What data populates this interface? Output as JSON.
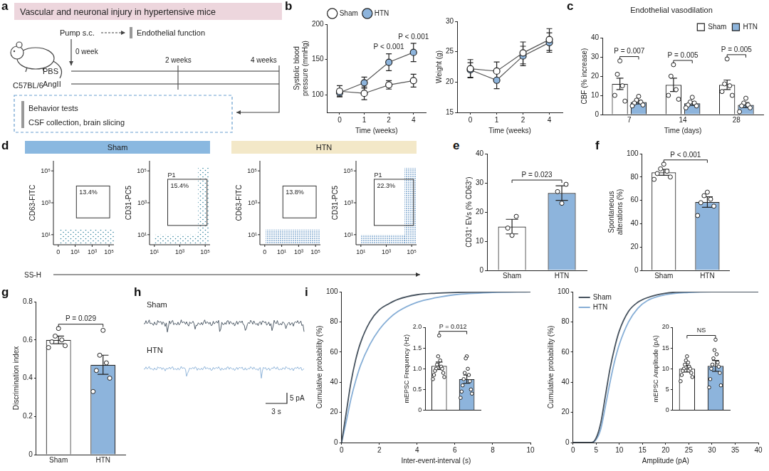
{
  "panel_a": {
    "letter": "a",
    "title": "Vascular and neuronal injury in hypertensive mice",
    "strain": "C57BL/6",
    "pump": "Pump s.c.",
    "start": "0 week",
    "mid": "2 weeks",
    "end": "4 weeks",
    "groups": [
      "PBS",
      "AngII"
    ],
    "early_test": "Endothelial function",
    "end_tests": [
      "Behavior tests",
      "CSF collection, brain slicing"
    ]
  },
  "chart_data": [
    {
      "panel": "b",
      "type": "line",
      "categories": [
        "0",
        "1",
        "2",
        "4"
      ],
      "x_label": "Time (weeks)",
      "y_label": "Systolic blood pressure (mmHg)",
      "ylim": [
        75,
        200
      ],
      "yticks": [
        100,
        150,
        200
      ],
      "grid": false,
      "legend": "top",
      "series": [
        {
          "name": "Sham",
          "color": "#ffffff",
          "marker": "circle",
          "values": [
            105,
            102,
            114,
            120
          ],
          "errors": [
            8,
            9,
            6,
            9
          ]
        },
        {
          "name": "HTN",
          "color": "#8db4dc",
          "marker": "circle",
          "values": [
            103,
            117,
            146,
            160
          ],
          "errors": [
            5,
            8,
            12,
            13
          ]
        }
      ],
      "annotations": [
        {
          "text": "P < 0.001",
          "category": "2"
        },
        {
          "text": "P < 0.001",
          "category": "4"
        }
      ]
    },
    {
      "panel": "b",
      "type": "line",
      "categories": [
        "0",
        "1",
        "2",
        "4"
      ],
      "x_label": "Time (weeks)",
      "y_label": "Weight (g)",
      "ylim": [
        15,
        30
      ],
      "yticks": [
        15,
        20,
        25,
        30
      ],
      "grid": false,
      "series": [
        {
          "name": "Sham",
          "color": "#ffffff",
          "marker": "circle",
          "values": [
            22.2,
            21.8,
            24.8,
            27.0
          ],
          "errors": [
            1.5,
            1.5,
            1.8,
            1.8
          ]
        },
        {
          "name": "HTN",
          "color": "#8db4dc",
          "marker": "circle",
          "values": [
            22.0,
            20.3,
            24.3,
            26.5
          ],
          "errors": [
            1.2,
            1.4,
            1.6,
            1.6
          ]
        }
      ]
    },
    {
      "panel": "c",
      "type": "bar",
      "title": "Endothelial vasodilation",
      "categories": [
        "7",
        "14",
        "28"
      ],
      "x_label": "Time (days)",
      "y_label": "CBF (% increase)",
      "ylim": [
        0,
        40
      ],
      "yticks": [
        0,
        10,
        20,
        30,
        40
      ],
      "grid": false,
      "legend": "top-right",
      "series": [
        {
          "name": "Sham",
          "color": "#ffffff",
          "values": [
            16,
            15.5,
            15.5
          ],
          "errors": [
            3,
            3.5,
            2.5
          ],
          "points": [
            [
              28,
              21,
              15,
              10,
              7
            ],
            [
              26,
              20,
              13,
              10,
              8
            ],
            [
              29,
              16,
              15,
              12,
              10
            ]
          ]
        },
        {
          "name": "HTN",
          "color": "#8db4dc",
          "values": [
            6.5,
            5.8,
            5
          ],
          "errors": [
            1,
            1,
            1.3
          ],
          "points": [
            [
              9.5,
              7.5,
              6.5,
              6,
              5,
              4.5
            ],
            [
              9,
              6.5,
              6,
              5,
              4.5,
              3.5
            ],
            [
              8.5,
              6,
              5,
              4.5,
              3.5,
              1.5
            ]
          ]
        }
      ],
      "annotations": [
        {
          "text": "P = 0.007",
          "category": "7"
        },
        {
          "text": "P = 0.005",
          "category": "14"
        },
        {
          "text": "P = 0.005",
          "category": "28"
        }
      ]
    },
    {
      "panel": "e",
      "type": "bar",
      "categories": [
        "Sham",
        "HTN"
      ],
      "y_label": "CD31⁺ EVs (% CD63⁺)",
      "ylim": [
        0,
        40
      ],
      "yticks": [
        0,
        10,
        20,
        30,
        40
      ],
      "grid": false,
      "values": [
        15,
        26.5
      ],
      "errors": [
        2.5,
        2.5
      ],
      "colors": [
        "#ffffff",
        "#8db4dc"
      ],
      "points": [
        [
          12,
          14.5,
          18.5
        ],
        [
          23,
          27,
          29.5
        ]
      ],
      "annotations": [
        {
          "text": "P = 0.023"
        }
      ]
    },
    {
      "panel": "f",
      "type": "bar",
      "categories": [
        "Sham",
        "HTN"
      ],
      "y_label": "Spontaneous alterations (%)",
      "ylim": [
        0,
        100
      ],
      "yticks": [
        0,
        20,
        40,
        60,
        80,
        100
      ],
      "grid": false,
      "values": [
        84,
        58.5
      ],
      "errors": [
        2.5,
        4.5
      ],
      "colors": [
        "#ffffff",
        "#8db4dc"
      ],
      "points": [
        [
          91,
          87,
          85,
          83,
          80,
          78
        ],
        [
          67,
          64,
          61,
          58,
          55,
          47
        ]
      ],
      "annotations": [
        {
          "text": "P < 0.001"
        }
      ]
    },
    {
      "panel": "g",
      "type": "bar",
      "categories": [
        "Sham",
        "HTN"
      ],
      "y_label": "Discrimination index",
      "ylim": [
        0,
        0.8
      ],
      "yticks": [
        0,
        0.2,
        0.4,
        0.6,
        0.8
      ],
      "grid": false,
      "values": [
        0.6,
        0.47
      ],
      "errors": [
        0.02,
        0.05
      ],
      "colors": [
        "#ffffff",
        "#8db4dc"
      ],
      "points": [
        [
          0.66,
          0.62,
          0.6,
          0.59,
          0.57,
          0.56
        ],
        [
          0.65,
          0.52,
          0.48,
          0.44,
          0.4,
          0.33
        ]
      ],
      "annotations": [
        {
          "text": "P = 0.029"
        }
      ]
    },
    {
      "panel": "i",
      "type": "line",
      "x_label": "Inter-event-interval (s)",
      "y_label": "Cumulative probability (%)",
      "xlim": [
        0,
        10
      ],
      "xticks": [
        0,
        2,
        4,
        6,
        8,
        10
      ],
      "ylim": [
        0,
        100
      ],
      "yticks": [
        0,
        20,
        40,
        60,
        80,
        100
      ],
      "grid": false,
      "series": [
        {
          "name": "Sham",
          "color": "#46525e",
          "x": [
            0,
            0.25,
            0.5,
            0.75,
            1,
            1.5,
            2,
            2.5,
            3,
            4,
            5,
            6,
            8,
            10
          ],
          "values": [
            0,
            20,
            40,
            55,
            66,
            80,
            88,
            92,
            95,
            98,
            99,
            99.5,
            100,
            100
          ]
        },
        {
          "name": "HTN",
          "color": "#86aed6",
          "x": [
            0,
            0.25,
            0.5,
            0.75,
            1,
            1.5,
            2,
            2.5,
            3,
            4,
            5,
            6,
            8,
            10
          ],
          "values": [
            0,
            14,
            29,
            41,
            51,
            65,
            75,
            82,
            87,
            93,
            96,
            98,
            99.5,
            100
          ]
        }
      ],
      "inset": {
        "type": "bar",
        "categories": [
          "Sham",
          "HTN"
        ],
        "y_label": "mEPSC Frequency (Hz)",
        "ylim": [
          0,
          2
        ],
        "yticks": [
          0,
          0.5,
          {
            "value": 1,
            "label": "1.0"
          },
          1.5,
          {
            "value": 2,
            "label": "2.0"
          }
        ],
        "tick_labels": "y",
        "grid": false,
        "values": [
          1.07,
          0.75
        ],
        "errors": [
          0.09,
          0.1
        ],
        "colors": [
          "#ffffff",
          "#8db4dc"
        ],
        "points": [
          [
            1.8,
            1.3,
            1.2,
            1.1,
            1.05,
            1.0,
            1.0,
            0.95,
            0.9,
            0.85,
            0.8,
            0.75
          ],
          [
            1.3,
            1.25,
            1.0,
            0.9,
            0.85,
            0.75,
            0.7,
            0.6,
            0.5,
            0.45,
            0.4,
            0.3
          ]
        ],
        "annotations": [
          {
            "text": "P = 0.012"
          }
        ]
      }
    },
    {
      "panel": "i",
      "type": "line",
      "x_label": "Amplitude (pA)",
      "y_label": "Cumulative probability (%)",
      "xlim": [
        0,
        40
      ],
      "xticks": [
        0,
        5,
        10,
        15,
        20,
        25,
        30,
        35,
        40
      ],
      "ylim": [
        0,
        100
      ],
      "yticks": [
        0,
        20,
        40,
        60,
        80,
        100
      ],
      "grid": false,
      "legend": "top-left",
      "series": [
        {
          "name": "Sham",
          "color": "#46525e",
          "x": [
            0,
            4,
            5,
            6,
            7,
            8,
            9,
            10,
            12,
            14,
            16,
            20,
            25,
            30,
            40
          ],
          "values": [
            0,
            0,
            3,
            13,
            31,
            49,
            63,
            74,
            87,
            93,
            96,
            99,
            100,
            100,
            100
          ]
        },
        {
          "name": "HTN",
          "color": "#86aed6",
          "x": [
            0,
            4,
            5,
            6,
            7,
            8,
            9,
            10,
            12,
            14,
            16,
            20,
            25,
            30,
            40
          ],
          "values": [
            0,
            0,
            2,
            9,
            24,
            40,
            54,
            65,
            80,
            89,
            94,
            98,
            99.5,
            100,
            100
          ]
        }
      ],
      "inset": {
        "type": "bar",
        "categories": [
          "Sham",
          "HTN"
        ],
        "y_label": "mEPSC Amplitude (pA)",
        "ylim": [
          0,
          20
        ],
        "yticks": [
          0,
          5,
          10,
          15,
          20
        ],
        "tick_labels": "y",
        "grid": false,
        "values": [
          10,
          10.7
        ],
        "errors": [
          0.8,
          1.3
        ],
        "colors": [
          "#ffffff",
          "#8db4dc"
        ],
        "points": [
          [
            13,
            12,
            11.5,
            11,
            10.5,
            10,
            10,
            9.5,
            9,
            8.5,
            8,
            7
          ],
          [
            17,
            14.5,
            13.5,
            12.5,
            11.5,
            11,
            10.5,
            10,
            9,
            7.5,
            6,
            5.5
          ]
        ],
        "annotations": [
          {
            "text": "NS"
          }
        ]
      }
    }
  ],
  "panel_d": {
    "letter": "d",
    "x_label": "SS-H",
    "groups": [
      {
        "name": "Sham",
        "color": "#8ab8e0",
        "plots": [
          {
            "y_label": "CD63-FITC",
            "gate": "13.4%",
            "yticks": [
              "10¹",
              "10³",
              "10⁵"
            ],
            "xticks": [
              "0",
              "10¹",
              "10³",
              "10⁵"
            ]
          },
          {
            "y_label": "CD31-PC5",
            "gate_name": "P1",
            "gate": "15.4%",
            "yticks": [
              "10¹",
              "10³",
              "10⁵"
            ],
            "xticks": [
              "10¹",
              "10³",
              "10⁵"
            ]
          }
        ]
      },
      {
        "name": "HTN",
        "color": "#f3e8c8",
        "plots": [
          {
            "y_label": "CD63-FITC",
            "gate": "13.8%",
            "yticks": [
              "10¹",
              "10³",
              "10⁵"
            ],
            "xticks": [
              "0",
              "10¹",
              "10³",
              "10⁵"
            ]
          },
          {
            "y_label": "CD31-PC5",
            "gate_name": "P1",
            "gate": "22.3%",
            "yticks": [
              "10¹",
              "10³",
              "10⁵"
            ],
            "xticks": [
              "10¹",
              "10³",
              "10⁵"
            ]
          }
        ]
      }
    ]
  },
  "panel_h": {
    "letter": "h",
    "traces": [
      {
        "name": "Sham",
        "color": "#3e4c59"
      },
      {
        "name": "HTN",
        "color": "#86aed6"
      }
    ],
    "scale_y": "5 pA",
    "scale_x": "3 s"
  }
}
